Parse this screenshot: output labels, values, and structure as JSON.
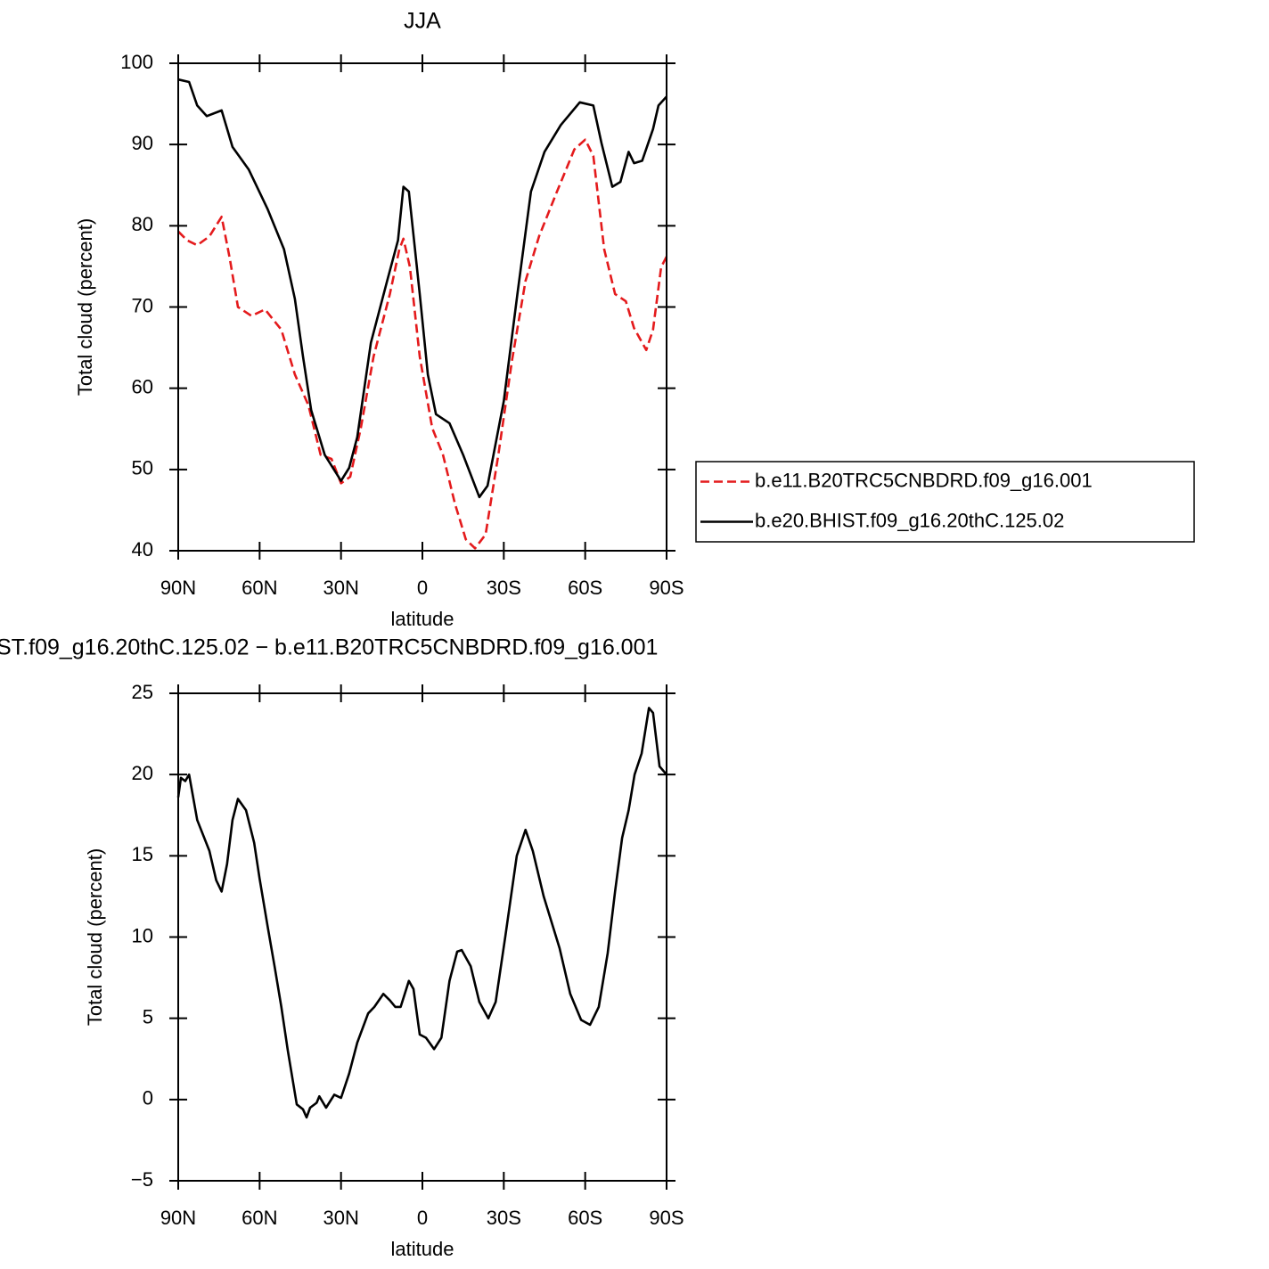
{
  "chart_data": [
    {
      "type": "line",
      "title": "JJA",
      "xlabel": "latitude",
      "ylabel": "Total cloud (percent)",
      "xlim": [
        90,
        -90
      ],
      "xticks": [
        {
          "value": 90,
          "label": "90N"
        },
        {
          "value": 60,
          "label": "60N"
        },
        {
          "value": 30,
          "label": "30N"
        },
        0,
        {
          "value": -30,
          "label": "30S"
        },
        {
          "value": -60,
          "label": "60S"
        },
        {
          "value": -90,
          "label": "90S"
        }
      ],
      "ylim": [
        40,
        100
      ],
      "yticks": [
        40,
        50,
        60,
        70,
        80,
        90,
        100
      ],
      "legend": "right",
      "series": [
        {
          "name": "b.e11.B20TRC5CNBDRD.f09_g16.001",
          "color": "#e41a1c",
          "dash": true,
          "x": [
            90,
            86.7,
            83,
            78.5,
            74,
            71,
            68,
            63,
            58,
            52,
            47,
            42,
            37.5,
            33.5,
            30,
            26.6,
            22.7,
            18,
            12,
            8.5,
            7,
            4.6,
            1,
            -3.6,
            -7.6,
            -12,
            -16,
            -19.4,
            -23.3,
            -28,
            -33,
            -38,
            -43,
            -49.6,
            -56,
            -60,
            -63,
            -67,
            -71,
            -75,
            -78,
            -82.5,
            -85,
            -88,
            -90
          ],
          "values": [
            79.3,
            78.2,
            77.6,
            78.7,
            81.1,
            76.0,
            70.0,
            68.9,
            69.7,
            67.2,
            61.7,
            57.9,
            51.8,
            51.3,
            48.3,
            49.1,
            55.1,
            63.9,
            71.6,
            77.1,
            78.4,
            74.9,
            63.9,
            55.1,
            51.8,
            45.8,
            41.4,
            40.3,
            42.0,
            51.8,
            63.4,
            73.2,
            78.7,
            84.2,
            89.4,
            90.6,
            88.6,
            77.1,
            71.6,
            70.7,
            67.4,
            64.7,
            67.2,
            74.9,
            76.2
          ]
        },
        {
          "name": "b.e20.BHIST.f09_g16.20thC.125.02",
          "color": "#000000",
          "dash": false,
          "x": [
            90,
            86,
            83,
            79.5,
            74,
            70,
            64,
            57,
            51,
            47,
            44,
            41,
            36,
            30,
            27,
            24,
            19,
            13,
            9,
            7,
            5,
            1,
            -2,
            -5,
            -10,
            -15,
            -21,
            -24,
            -30,
            -35,
            -40,
            -45,
            -51,
            -58,
            -63,
            -66,
            -70,
            -73,
            -76,
            -78,
            -81,
            -85,
            -87,
            -90
          ],
          "values": [
            98.0,
            97.7,
            94.8,
            93.5,
            94.2,
            89.7,
            86.9,
            82.0,
            77.1,
            71.0,
            63.9,
            57.3,
            51.8,
            48.6,
            50.2,
            54.0,
            65.6,
            73.2,
            78.2,
            84.8,
            84.2,
            71.6,
            61.7,
            56.8,
            55.7,
            51.8,
            46.6,
            48.0,
            58.4,
            71.6,
            84.2,
            89.1,
            92.4,
            95.2,
            94.8,
            90.2,
            84.8,
            85.4,
            89.1,
            87.7,
            88.0,
            91.9,
            94.8,
            95.9
          ]
        }
      ]
    },
    {
      "type": "line",
      "title": "ST.f09_g16.20thC.125.02 − b.e11.B20TRC5CNBDRD.f09_g16.001",
      "xlabel": "latitude",
      "ylabel": "Total cloud (percent)",
      "xlim": [
        90,
        -90
      ],
      "xticks": [
        {
          "value": 90,
          "label": "90N"
        },
        {
          "value": 60,
          "label": "60N"
        },
        {
          "value": 30,
          "label": "30N"
        },
        0,
        {
          "value": -30,
          "label": "30S"
        },
        {
          "value": -60,
          "label": "60S"
        },
        {
          "value": -90,
          "label": "90S"
        }
      ],
      "ylim": [
        -5,
        25
      ],
      "yticks": [
        {
          "value": -5,
          "label": "−5"
        },
        0,
        5,
        10,
        15,
        20,
        25
      ],
      "series": [
        {
          "color": "#000000",
          "dash": false,
          "x": [
            90,
            89,
            87.4,
            86,
            83,
            78.5,
            76,
            74,
            72,
            70,
            68,
            65,
            62,
            60,
            57,
            54.5,
            52,
            49.6,
            46.3,
            44,
            42.7,
            41.4,
            39,
            38,
            35.5,
            32.5,
            30,
            27,
            24,
            20,
            17.7,
            14.4,
            12,
            10,
            8,
            5,
            3.3,
            1,
            -1.3,
            -4.3,
            -7,
            -10,
            -12.8,
            -14.5,
            -17.8,
            -21,
            -24.3,
            -27,
            -30.6,
            -34.8,
            -38,
            -40.7,
            -44.7,
            -50.6,
            -54.5,
            -58.5,
            -61.8,
            -65,
            -68.3,
            -71,
            -73.6,
            -76,
            -78.2,
            -80.8,
            -83.5,
            -85,
            -87.4,
            -90
          ],
          "values": [
            18.6,
            19.8,
            19.6,
            20.0,
            17.2,
            15.3,
            13.5,
            12.8,
            14.5,
            17.2,
            18.5,
            17.8,
            15.8,
            13.6,
            10.6,
            8.2,
            5.7,
            3.0,
            -0.3,
            -0.6,
            -1.1,
            -0.5,
            -0.2,
            0.2,
            -0.5,
            0.3,
            0.1,
            1.6,
            3.5,
            5.3,
            5.7,
            6.5,
            6.1,
            5.7,
            5.7,
            7.3,
            6.8,
            4.0,
            3.8,
            3.1,
            3.8,
            7.3,
            9.1,
            9.2,
            8.2,
            6.0,
            5.0,
            6.0,
            10.1,
            15.0,
            16.6,
            15.3,
            12.5,
            9.3,
            6.5,
            4.9,
            4.6,
            5.7,
            9.0,
            12.8,
            16.1,
            17.8,
            20.0,
            21.3,
            24.1,
            23.8,
            20.5,
            20.0
          ]
        }
      ]
    }
  ]
}
